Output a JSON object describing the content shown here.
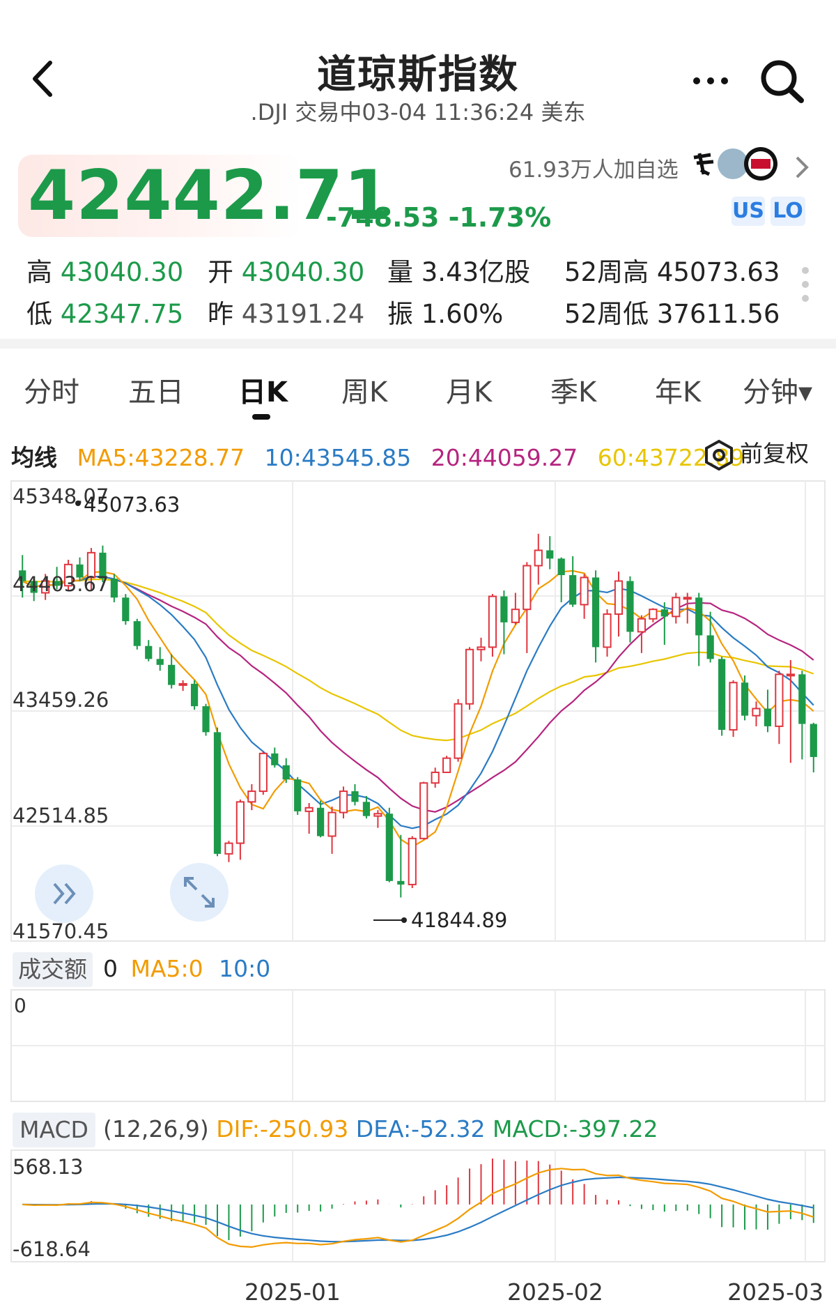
{
  "header": {
    "title": "道琼斯指数",
    "subtitle": ".DJI 交易中03-04 11:36:24 美东"
  },
  "quote": {
    "price": "42442.71",
    "change": "-748.53 -1.73%",
    "followers": "61.93万人加自选",
    "tag_us": "US",
    "tag_lo": "LO",
    "color_down": "#1c9a4a",
    "color_up": "#e0353f"
  },
  "stats": {
    "high_label": "高",
    "high": "43040.30",
    "open_label": "开",
    "open": "43040.30",
    "volume_label": "量",
    "volume": "3.43亿股",
    "wk52_high_label": "52周高",
    "wk52_high": "45073.63",
    "low_label": "低",
    "low": "42347.75",
    "prev_label": "昨",
    "prev": "43191.24",
    "amplitude_label": "振",
    "amplitude": "1.60%",
    "wk52_low_label": "52周低",
    "wk52_low": "37611.56"
  },
  "tabs": [
    "分时",
    "五日",
    "日K",
    "周K",
    "月K",
    "季K",
    "年K",
    "分钟▾"
  ],
  "active_tab": "日K",
  "ma": {
    "label": "均线",
    "ma5": "MA5:43228.77",
    "ma10": "10:43545.85",
    "ma20": "20:44059.27",
    "ma60": "60:43722.89",
    "color_ma5": "#f29b00",
    "color_ma10": "#2a7bc4",
    "color_ma20": "#b5247f",
    "color_ma60": "#e8c500",
    "adjust_label": "前复权"
  },
  "volume": {
    "label": "成交额",
    "value": "0",
    "ma5": "MA5:0",
    "ma10": "10:0",
    "axis_value": "0"
  },
  "macd": {
    "label": "MACD",
    "params": "(12,26,9)",
    "dif": "DIF:-250.93",
    "dea": "DEA:-52.32",
    "macd": "MACD:-397.22",
    "axis_top": "568.13",
    "axis_bottom": "-618.64"
  },
  "chart_data": {
    "type": "candlestick",
    "y_axis_labels": [
      "45348.07",
      "44403.67",
      "43459.26",
      "42514.85",
      "41570.45"
    ],
    "ylim": [
      41570.45,
      45348.07
    ],
    "x_axis_labels": [
      "2025-01",
      "2025-02",
      "2025-03"
    ],
    "annotations": [
      {
        "label": "45073.63",
        "value": 45073.63,
        "kind": "period-high"
      },
      {
        "label": "41844.89",
        "value": 41844.89,
        "kind": "period-low"
      }
    ],
    "candles": [
      [
        44650,
        44780,
        44420,
        44560
      ],
      [
        44560,
        44600,
        44390,
        44460
      ],
      [
        44460,
        44620,
        44400,
        44560
      ],
      [
        44560,
        44680,
        44490,
        44520
      ],
      [
        44520,
        44740,
        44480,
        44700
      ],
      [
        44700,
        44760,
        44560,
        44590
      ],
      [
        44590,
        44840,
        44480,
        44800
      ],
      [
        44800,
        44860,
        44550,
        44580
      ],
      [
        44580,
        44620,
        44380,
        44420
      ],
      [
        44420,
        44450,
        44190,
        44220
      ],
      [
        44220,
        44240,
        43980,
        44010
      ],
      [
        44010,
        44060,
        43880,
        43900
      ],
      [
        43900,
        44000,
        43800,
        43850
      ],
      [
        43850,
        43940,
        43650,
        43680
      ],
      [
        43680,
        43720,
        43630,
        43690
      ],
      [
        43690,
        43720,
        43470,
        43500
      ],
      [
        43500,
        43520,
        43250,
        43280
      ],
      [
        43280,
        43320,
        42230,
        42250
      ],
      [
        42250,
        42360,
        42180,
        42340
      ],
      [
        42340,
        42710,
        42200,
        42690
      ],
      [
        42690,
        42840,
        42620,
        42780
      ],
      [
        42780,
        43120,
        42750,
        43100
      ],
      [
        43100,
        43150,
        42980,
        43000
      ],
      [
        43000,
        43060,
        42850,
        42880
      ],
      [
        42880,
        42900,
        42580,
        42610
      ],
      [
        42610,
        42680,
        42420,
        42640
      ],
      [
        42640,
        42700,
        42390,
        42400
      ],
      [
        42400,
        42650,
        42250,
        42600
      ],
      [
        42600,
        42820,
        42550,
        42780
      ],
      [
        42780,
        42840,
        42660,
        42690
      ],
      [
        42690,
        42740,
        42550,
        42570
      ],
      [
        42570,
        42620,
        42470,
        42590
      ],
      [
        42590,
        42640,
        42010,
        42020
      ],
      [
        42020,
        42410,
        41880,
        41990
      ],
      [
        41990,
        42400,
        41960,
        42380
      ],
      [
        42380,
        42860,
        42370,
        42850
      ],
      [
        42850,
        42980,
        42810,
        42940
      ],
      [
        42940,
        43080,
        42940,
        43060
      ],
      [
        43060,
        43560,
        43030,
        43520
      ],
      [
        43520,
        44000,
        43470,
        43980
      ],
      [
        43980,
        44080,
        43880,
        44000
      ],
      [
        44000,
        44450,
        43920,
        44430
      ],
      [
        44430,
        44480,
        43940,
        44210
      ],
      [
        44210,
        44460,
        44190,
        44320
      ],
      [
        44320,
        44720,
        43950,
        44690
      ],
      [
        44690,
        44960,
        44530,
        44820
      ],
      [
        44820,
        44940,
        44660,
        44750
      ],
      [
        44750,
        44760,
        44380,
        44610
      ],
      [
        44610,
        44770,
        44340,
        44360
      ],
      [
        44360,
        44620,
        44240,
        44590
      ],
      [
        44590,
        44650,
        43870,
        44000
      ],
      [
        44000,
        44320,
        43920,
        44280
      ],
      [
        44280,
        44640,
        44090,
        44560
      ],
      [
        44560,
        44600,
        44040,
        44130
      ],
      [
        44130,
        44270,
        43950,
        44240
      ],
      [
        44240,
        44330,
        44210,
        44320
      ],
      [
        44320,
        44380,
        44020,
        44260
      ],
      [
        44260,
        44460,
        44200,
        44420
      ],
      [
        44420,
        44460,
        44200,
        44420
      ],
      [
        44420,
        44460,
        43840,
        44100
      ],
      [
        44100,
        44300,
        43870,
        43900
      ],
      [
        43900,
        43920,
        43250,
        43300
      ],
      [
        43300,
        43720,
        43240,
        43700
      ],
      [
        43700,
        43760,
        43380,
        43420
      ],
      [
        43420,
        43540,
        43330,
        43480
      ],
      [
        43480,
        43640,
        43280,
        43330
      ],
      [
        43330,
        43800,
        43180,
        43770
      ],
      [
        43770,
        43890,
        43020,
        43770
      ],
      [
        43770,
        43800,
        43050,
        43350
      ],
      [
        43350,
        43360,
        42940,
        43070
      ]
    ]
  }
}
